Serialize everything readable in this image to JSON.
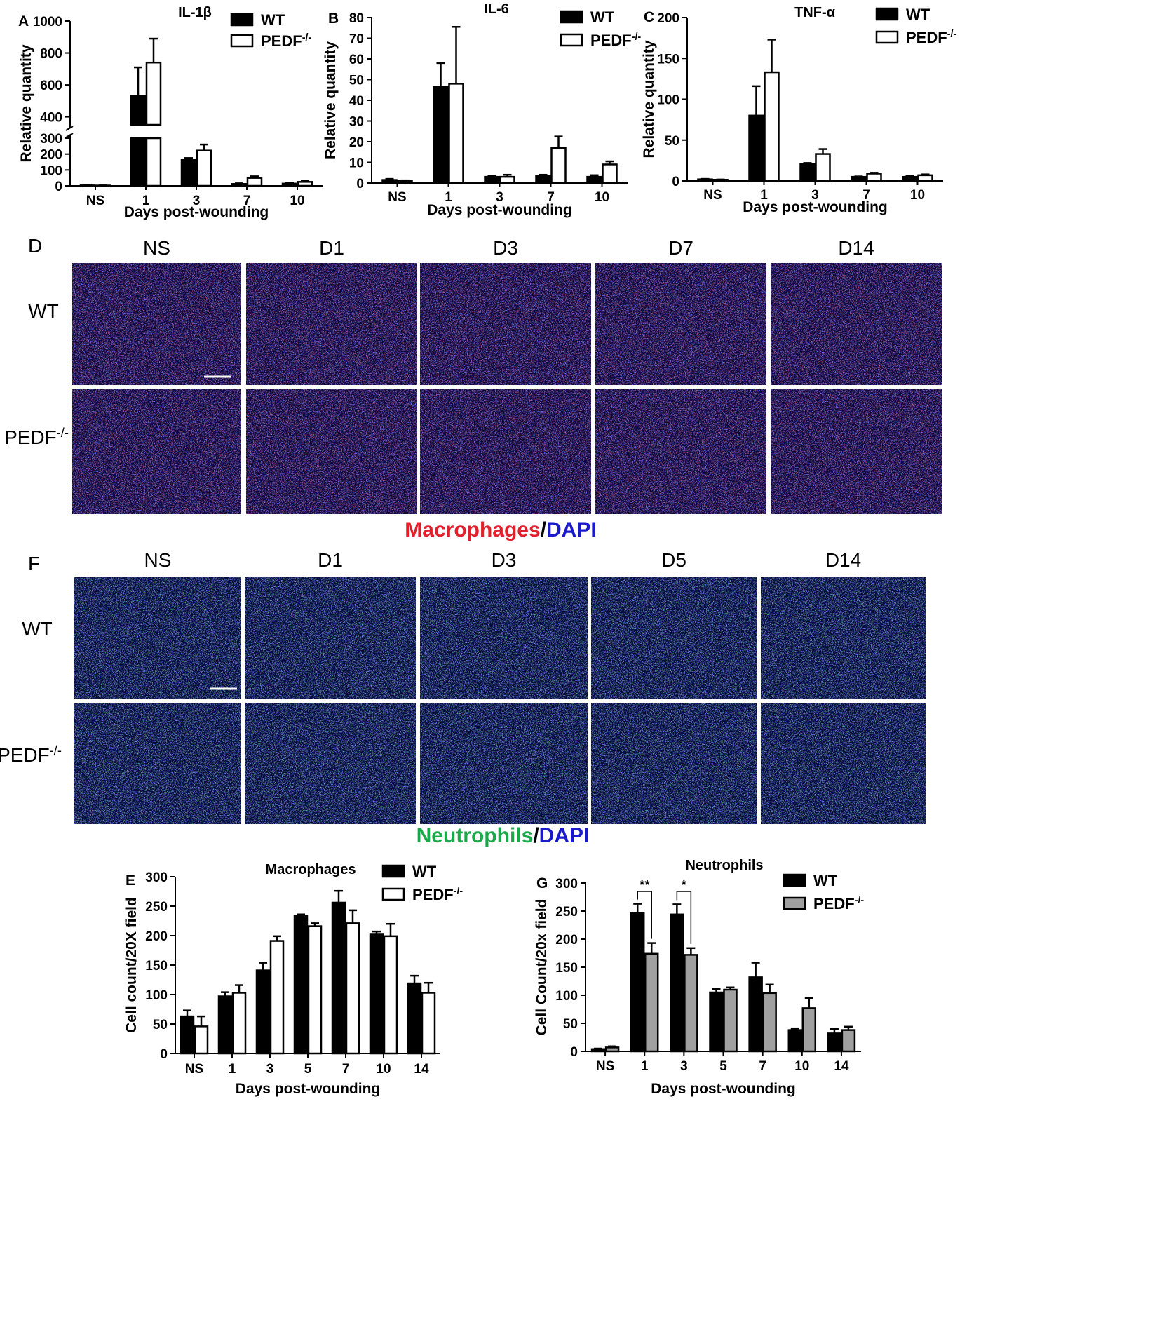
{
  "figure": {
    "panels_micro": [
      {
        "letter": "D",
        "columns": [
          "NS",
          "D1",
          "D3",
          "D7",
          "D14"
        ],
        "rows": [
          "WT",
          "PEDF"
        ],
        "row_superscript": "-/-",
        "caption_a": "Macrophages",
        "caption_sep": "/",
        "caption_b": "DAPI",
        "colors": {
          "stain": "#e0202a",
          "dapi": "#1a1acc",
          "sep": "#000000"
        }
      },
      {
        "letter": "F",
        "columns": [
          "NS",
          "D1",
          "D3",
          "D5",
          "D14"
        ],
        "rows": [
          "WT",
          "PEDF"
        ],
        "row_superscript": "-/-",
        "caption_a": "Neutrophils",
        "caption_sep": "/",
        "caption_b": "DAPI",
        "colors": {
          "stain": "#1aa84a",
          "dapi": "#1a1acc",
          "sep": "#000000"
        }
      }
    ]
  },
  "chart_data": [
    {
      "id": "A",
      "type": "bar",
      "title": "IL-1β",
      "xlabel": "Days post-wounding",
      "ylabel": "Relative quantity",
      "categories": [
        "NS",
        "1",
        "3",
        "7",
        "10"
      ],
      "series": [
        {
          "name": "WT",
          "values": [
            3,
            530,
            165,
            12,
            14
          ],
          "errors": [
            2,
            180,
            10,
            4,
            4
          ],
          "fill": "#000000"
        },
        {
          "name": "PEDF",
          "name_sup": "-/-",
          "values": [
            2,
            740,
            222,
            50,
            25
          ],
          "errors": [
            1,
            150,
            38,
            10,
            5
          ],
          "fill": "#ffffff"
        }
      ],
      "broken_axis": true,
      "yticks_low": [
        "0",
        "100",
        "200",
        "300"
      ],
      "yticks_high": [
        "400",
        "600",
        "800",
        "1000"
      ]
    },
    {
      "id": "B",
      "type": "bar",
      "title": "IL-6",
      "xlabel": "Days post-wounding",
      "ylabel": "Relative quantity",
      "categories": [
        "NS",
        "1",
        "3",
        "7",
        "10"
      ],
      "ylim": [
        0,
        80
      ],
      "yticks": [
        "0",
        "10",
        "20",
        "30",
        "40",
        "50",
        "60",
        "70",
        "80"
      ],
      "series": [
        {
          "name": "WT",
          "values": [
            1.5,
            46.5,
            3,
            3.5,
            3
          ],
          "errors": [
            0.5,
            11.5,
            0.5,
            0.5,
            0.8
          ],
          "fill": "#000000"
        },
        {
          "name": "PEDF",
          "name_sup": "-/-",
          "values": [
            1,
            48,
            3,
            17,
            9
          ],
          "errors": [
            0.3,
            27.5,
            1,
            5.5,
            1.5
          ],
          "fill": "#ffffff"
        }
      ]
    },
    {
      "id": "C",
      "type": "bar",
      "title": "TNF-α",
      "xlabel": "Days post-wounding",
      "ylabel": "Relative quantity",
      "categories": [
        "NS",
        "1",
        "3",
        "7",
        "10"
      ],
      "ylim": [
        0,
        200
      ],
      "yticks": [
        "0",
        "50",
        "100",
        "150",
        "200"
      ],
      "series": [
        {
          "name": "WT",
          "values": [
            2,
            80,
            21,
            5,
            5
          ],
          "errors": [
            0.5,
            36,
            1,
            0.5,
            1.5
          ],
          "fill": "#000000"
        },
        {
          "name": "PEDF",
          "name_sup": "-/-",
          "values": [
            1.5,
            133,
            33,
            9,
            7
          ],
          "errors": [
            0.3,
            40,
            6,
            1,
            1
          ],
          "fill": "#ffffff"
        }
      ]
    },
    {
      "id": "E",
      "type": "bar",
      "title": "Macrophages",
      "xlabel": "Days post-wounding",
      "ylabel": "Cell count/20X field",
      "categories": [
        "NS",
        "1",
        "3",
        "5",
        "7",
        "10",
        "14"
      ],
      "ylim": [
        0,
        300
      ],
      "yticks": [
        "0",
        "50",
        "100",
        "150",
        "200",
        "250",
        "300"
      ],
      "series": [
        {
          "name": "WT",
          "values": [
            63,
            97,
            141,
            233,
            256,
            203,
            119
          ],
          "errors": [
            10,
            7,
            13,
            3,
            20,
            4,
            13
          ],
          "fill": "#000000"
        },
        {
          "name": "PEDF",
          "name_sup": "-/-",
          "values": [
            46,
            103,
            191,
            216,
            221,
            199,
            103
          ],
          "errors": [
            17,
            13,
            8,
            5,
            22,
            21,
            17
          ],
          "fill": "#ffffff"
        }
      ]
    },
    {
      "id": "G",
      "type": "bar",
      "title": "Neutrophils",
      "xlabel": "Days post-wounding",
      "ylabel": "Cell  Count/20x field",
      "categories": [
        "NS",
        "1",
        "3",
        "5",
        "7",
        "10",
        "14"
      ],
      "ylim": [
        0,
        300
      ],
      "yticks": [
        "0",
        "50",
        "100",
        "150",
        "200",
        "250",
        "300"
      ],
      "series": [
        {
          "name": "WT",
          "values": [
            4,
            247,
            244,
            105,
            132,
            38,
            32
          ],
          "errors": [
            1,
            16,
            18,
            6,
            26,
            3,
            8
          ],
          "fill": "#000000"
        },
        {
          "name": "PEDF",
          "name_sup": "-/-",
          "values": [
            7,
            174,
            172,
            110,
            104,
            77,
            38
          ],
          "errors": [
            2,
            19,
            12,
            4,
            15,
            18,
            6
          ],
          "fill": "#a0a0a0"
        }
      ],
      "significance": [
        {
          "category": "1",
          "label": "**"
        },
        {
          "category": "3",
          "label": "*"
        }
      ]
    }
  ]
}
